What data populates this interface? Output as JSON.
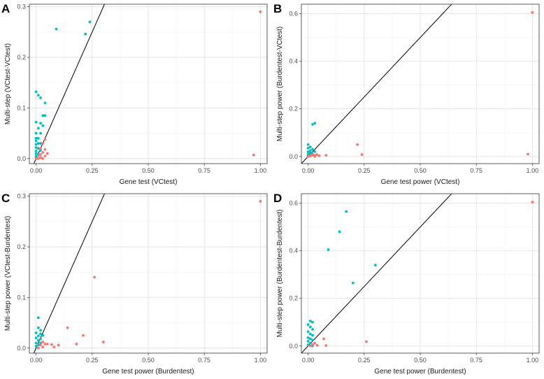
{
  "colors": {
    "pathway": "#00BFC4",
    "gene": "#F8766D",
    "diagonal": "#000000"
  },
  "chart_data": [
    {
      "id": "A",
      "type": "scatter",
      "panel_label": "A",
      "xlabel": "Gene test (VCtest)",
      "ylabel": "Multi-step (VCtest-VCtest)",
      "xlim": [
        -0.03,
        1.03
      ],
      "ylim": [
        -0.01,
        0.305
      ],
      "xticks": [
        0,
        0.25,
        0.5,
        0.75,
        1
      ],
      "xtick_labels": [
        "0.00",
        "0.25",
        "0.50",
        "0.75",
        "1.00"
      ],
      "yticks": [
        0,
        0.1,
        0.2,
        0.3
      ],
      "ytick_labels": [
        "0.0",
        "0.1",
        "0.2",
        "0.3"
      ],
      "diagonal": true,
      "grid": true,
      "series": [
        {
          "color": "#00BFC4",
          "points": [
            [
              0.09,
              0.256
            ],
            [
              0.24,
              0.27
            ],
            [
              0.22,
              0.246
            ],
            [
              0.0,
              0.132
            ],
            [
              0.02,
              0.12
            ],
            [
              0.01,
              0.125
            ],
            [
              0.04,
              0.11
            ],
            [
              0.03,
              0.085
            ],
            [
              0.04,
              0.085
            ],
            [
              0.0,
              0.072
            ],
            [
              0.02,
              0.07
            ],
            [
              0.03,
              0.065
            ],
            [
              0.01,
              0.06
            ],
            [
              0.0,
              0.05
            ],
            [
              0.02,
              0.05
            ],
            [
              0.0,
              0.04
            ],
            [
              0.01,
              0.04
            ],
            [
              0.0,
              0.035
            ],
            [
              0.01,
              0.03
            ],
            [
              0.0,
              0.028
            ],
            [
              0.02,
              0.03
            ],
            [
              0.0,
              0.022
            ],
            [
              0.01,
              0.02
            ],
            [
              0.0,
              0.015
            ],
            [
              0.02,
              0.016
            ],
            [
              0.0,
              0.01
            ],
            [
              0.01,
              0.008
            ],
            [
              0.0,
              0.005
            ],
            [
              0.0,
              0.002
            ],
            [
              0.01,
              0.0
            ]
          ]
        },
        {
          "color": "#F8766D",
          "points": [
            [
              1.0,
              0.29
            ],
            [
              0.97,
              0.007
            ],
            [
              0.04,
              0.038
            ],
            [
              0.03,
              0.03
            ],
            [
              0.02,
              0.02
            ],
            [
              0.04,
              0.018
            ],
            [
              0.03,
              0.012
            ],
            [
              0.05,
              0.01
            ],
            [
              0.02,
              0.008
            ],
            [
              0.01,
              0.006
            ],
            [
              0.04,
              0.005
            ],
            [
              0.02,
              0.002
            ],
            [
              0.03,
              0.0
            ],
            [
              0.01,
              0.0
            ],
            [
              0.0,
              0.0
            ]
          ]
        }
      ]
    },
    {
      "id": "B",
      "type": "scatter",
      "panel_label": "B",
      "xlabel": "Gene test power (VCtest)",
      "ylabel": "Multi-step power (Burdentest-VCtest)",
      "xlim": [
        -0.03,
        1.03
      ],
      "ylim": [
        -0.03,
        0.64
      ],
      "xticks": [
        0,
        0.25,
        0.5,
        0.75,
        1
      ],
      "xtick_labels": [
        "0.00",
        "0.25",
        "0.50",
        "0.75",
        "1.00"
      ],
      "yticks": [
        0,
        0.2,
        0.4,
        0.6
      ],
      "ytick_labels": [
        "0.0",
        "0.2",
        "0.4",
        "0.6"
      ],
      "diagonal": true,
      "grid": true,
      "series": [
        {
          "color": "#00BFC4",
          "points": [
            [
              0.02,
              0.135
            ],
            [
              0.03,
              0.14
            ],
            [
              0.0,
              0.05
            ],
            [
              0.01,
              0.04
            ],
            [
              0.0,
              0.035
            ],
            [
              0.02,
              0.03
            ],
            [
              0.01,
              0.025
            ],
            [
              0.0,
              0.02
            ],
            [
              0.03,
              0.02
            ],
            [
              0.01,
              0.015
            ],
            [
              0.0,
              0.01
            ],
            [
              0.02,
              0.01
            ],
            [
              0.0,
              0.005
            ],
            [
              0.01,
              0.003
            ],
            [
              0.0,
              0.0
            ]
          ]
        },
        {
          "color": "#F8766D",
          "points": [
            [
              1.0,
              0.605
            ],
            [
              0.98,
              0.01
            ],
            [
              0.22,
              0.05
            ],
            [
              0.24,
              0.008
            ],
            [
              0.08,
              0.005
            ],
            [
              0.04,
              0.008
            ],
            [
              0.03,
              0.005
            ],
            [
              0.02,
              0.006
            ],
            [
              0.05,
              0.003
            ],
            [
              0.01,
              0.002
            ],
            [
              0.03,
              0.0
            ],
            [
              0.0,
              0.0
            ]
          ]
        }
      ]
    },
    {
      "id": "C",
      "type": "scatter",
      "panel_label": "C",
      "xlabel": "Gene test power (Burdentest)",
      "ylabel": "Multi-step power (VCtest-Burdentest)",
      "xlim": [
        -0.03,
        1.03
      ],
      "ylim": [
        -0.01,
        0.305
      ],
      "xticks": [
        0,
        0.25,
        0.5,
        0.75,
        1
      ],
      "xtick_labels": [
        "0.00",
        "0.25",
        "0.50",
        "0.75",
        "1.00"
      ],
      "yticks": [
        0,
        0.1,
        0.2,
        0.3
      ],
      "ytick_labels": [
        "0.0",
        "0.1",
        "0.2",
        "0.3"
      ],
      "diagonal": true,
      "grid": true,
      "series": [
        {
          "color": "#00BFC4",
          "points": [
            [
              0.01,
              0.06
            ],
            [
              0.01,
              0.04
            ],
            [
              0.02,
              0.035
            ],
            [
              0.0,
              0.03
            ],
            [
              0.02,
              0.028
            ],
            [
              0.01,
              0.024
            ],
            [
              0.03,
              0.025
            ],
            [
              0.0,
              0.02
            ],
            [
              0.02,
              0.018
            ],
            [
              0.01,
              0.015
            ],
            [
              0.0,
              0.01
            ],
            [
              0.02,
              0.01
            ],
            [
              0.01,
              0.006
            ],
            [
              0.0,
              0.004
            ],
            [
              0.01,
              0.0
            ]
          ]
        },
        {
          "color": "#F8766D",
          "points": [
            [
              1.0,
              0.29
            ],
            [
              0.26,
              0.14
            ],
            [
              0.3,
              0.012
            ],
            [
              0.14,
              0.04
            ],
            [
              0.21,
              0.025
            ],
            [
              0.18,
              0.008
            ],
            [
              0.07,
              0.007
            ],
            [
              0.1,
              0.006
            ],
            [
              0.05,
              0.008
            ],
            [
              0.08,
              0.002
            ],
            [
              0.03,
              0.012
            ],
            [
              0.04,
              0.008
            ],
            [
              0.02,
              0.006
            ],
            [
              0.03,
              0.002
            ],
            [
              0.01,
              0.0
            ]
          ]
        }
      ]
    },
    {
      "id": "D",
      "type": "scatter",
      "panel_label": "D",
      "xlabel": "Gene test power (Burdentest)",
      "ylabel": "Multi-step power (Burdentest-Burdentest)",
      "xlim": [
        -0.03,
        1.03
      ],
      "ylim": [
        -0.03,
        0.64
      ],
      "xticks": [
        0,
        0.25,
        0.5,
        0.75,
        1
      ],
      "xtick_labels": [
        "0.00",
        "0.25",
        "0.50",
        "0.75",
        "1.00"
      ],
      "yticks": [
        0,
        0.2,
        0.4,
        0.6
      ],
      "ytick_labels": [
        "0.0",
        "0.2",
        "0.4",
        "0.6"
      ],
      "diagonal": true,
      "grid": true,
      "series": [
        {
          "color": "#00BFC4",
          "points": [
            [
              0.17,
              0.565
            ],
            [
              0.14,
              0.48
            ],
            [
              0.09,
              0.405
            ],
            [
              0.3,
              0.34
            ],
            [
              0.2,
              0.265
            ],
            [
              0.01,
              0.105
            ],
            [
              0.02,
              0.1
            ],
            [
              0.0,
              0.09
            ],
            [
              0.01,
              0.08
            ],
            [
              0.02,
              0.07
            ],
            [
              0.0,
              0.06
            ],
            [
              0.01,
              0.05
            ],
            [
              0.02,
              0.045
            ],
            [
              0.0,
              0.035
            ],
            [
              0.01,
              0.03
            ],
            [
              0.02,
              0.025
            ],
            [
              0.0,
              0.02
            ],
            [
              0.01,
              0.012
            ],
            [
              0.0,
              0.005
            ],
            [
              0.02,
              0.0
            ]
          ]
        },
        {
          "color": "#F8766D",
          "points": [
            [
              1.0,
              0.605
            ],
            [
              0.26,
              0.018
            ],
            [
              0.07,
              0.03
            ],
            [
              0.08,
              0.002
            ],
            [
              0.03,
              0.012
            ],
            [
              0.02,
              0.006
            ],
            [
              0.04,
              0.003
            ],
            [
              0.01,
              0.0
            ]
          ]
        }
      ]
    }
  ]
}
